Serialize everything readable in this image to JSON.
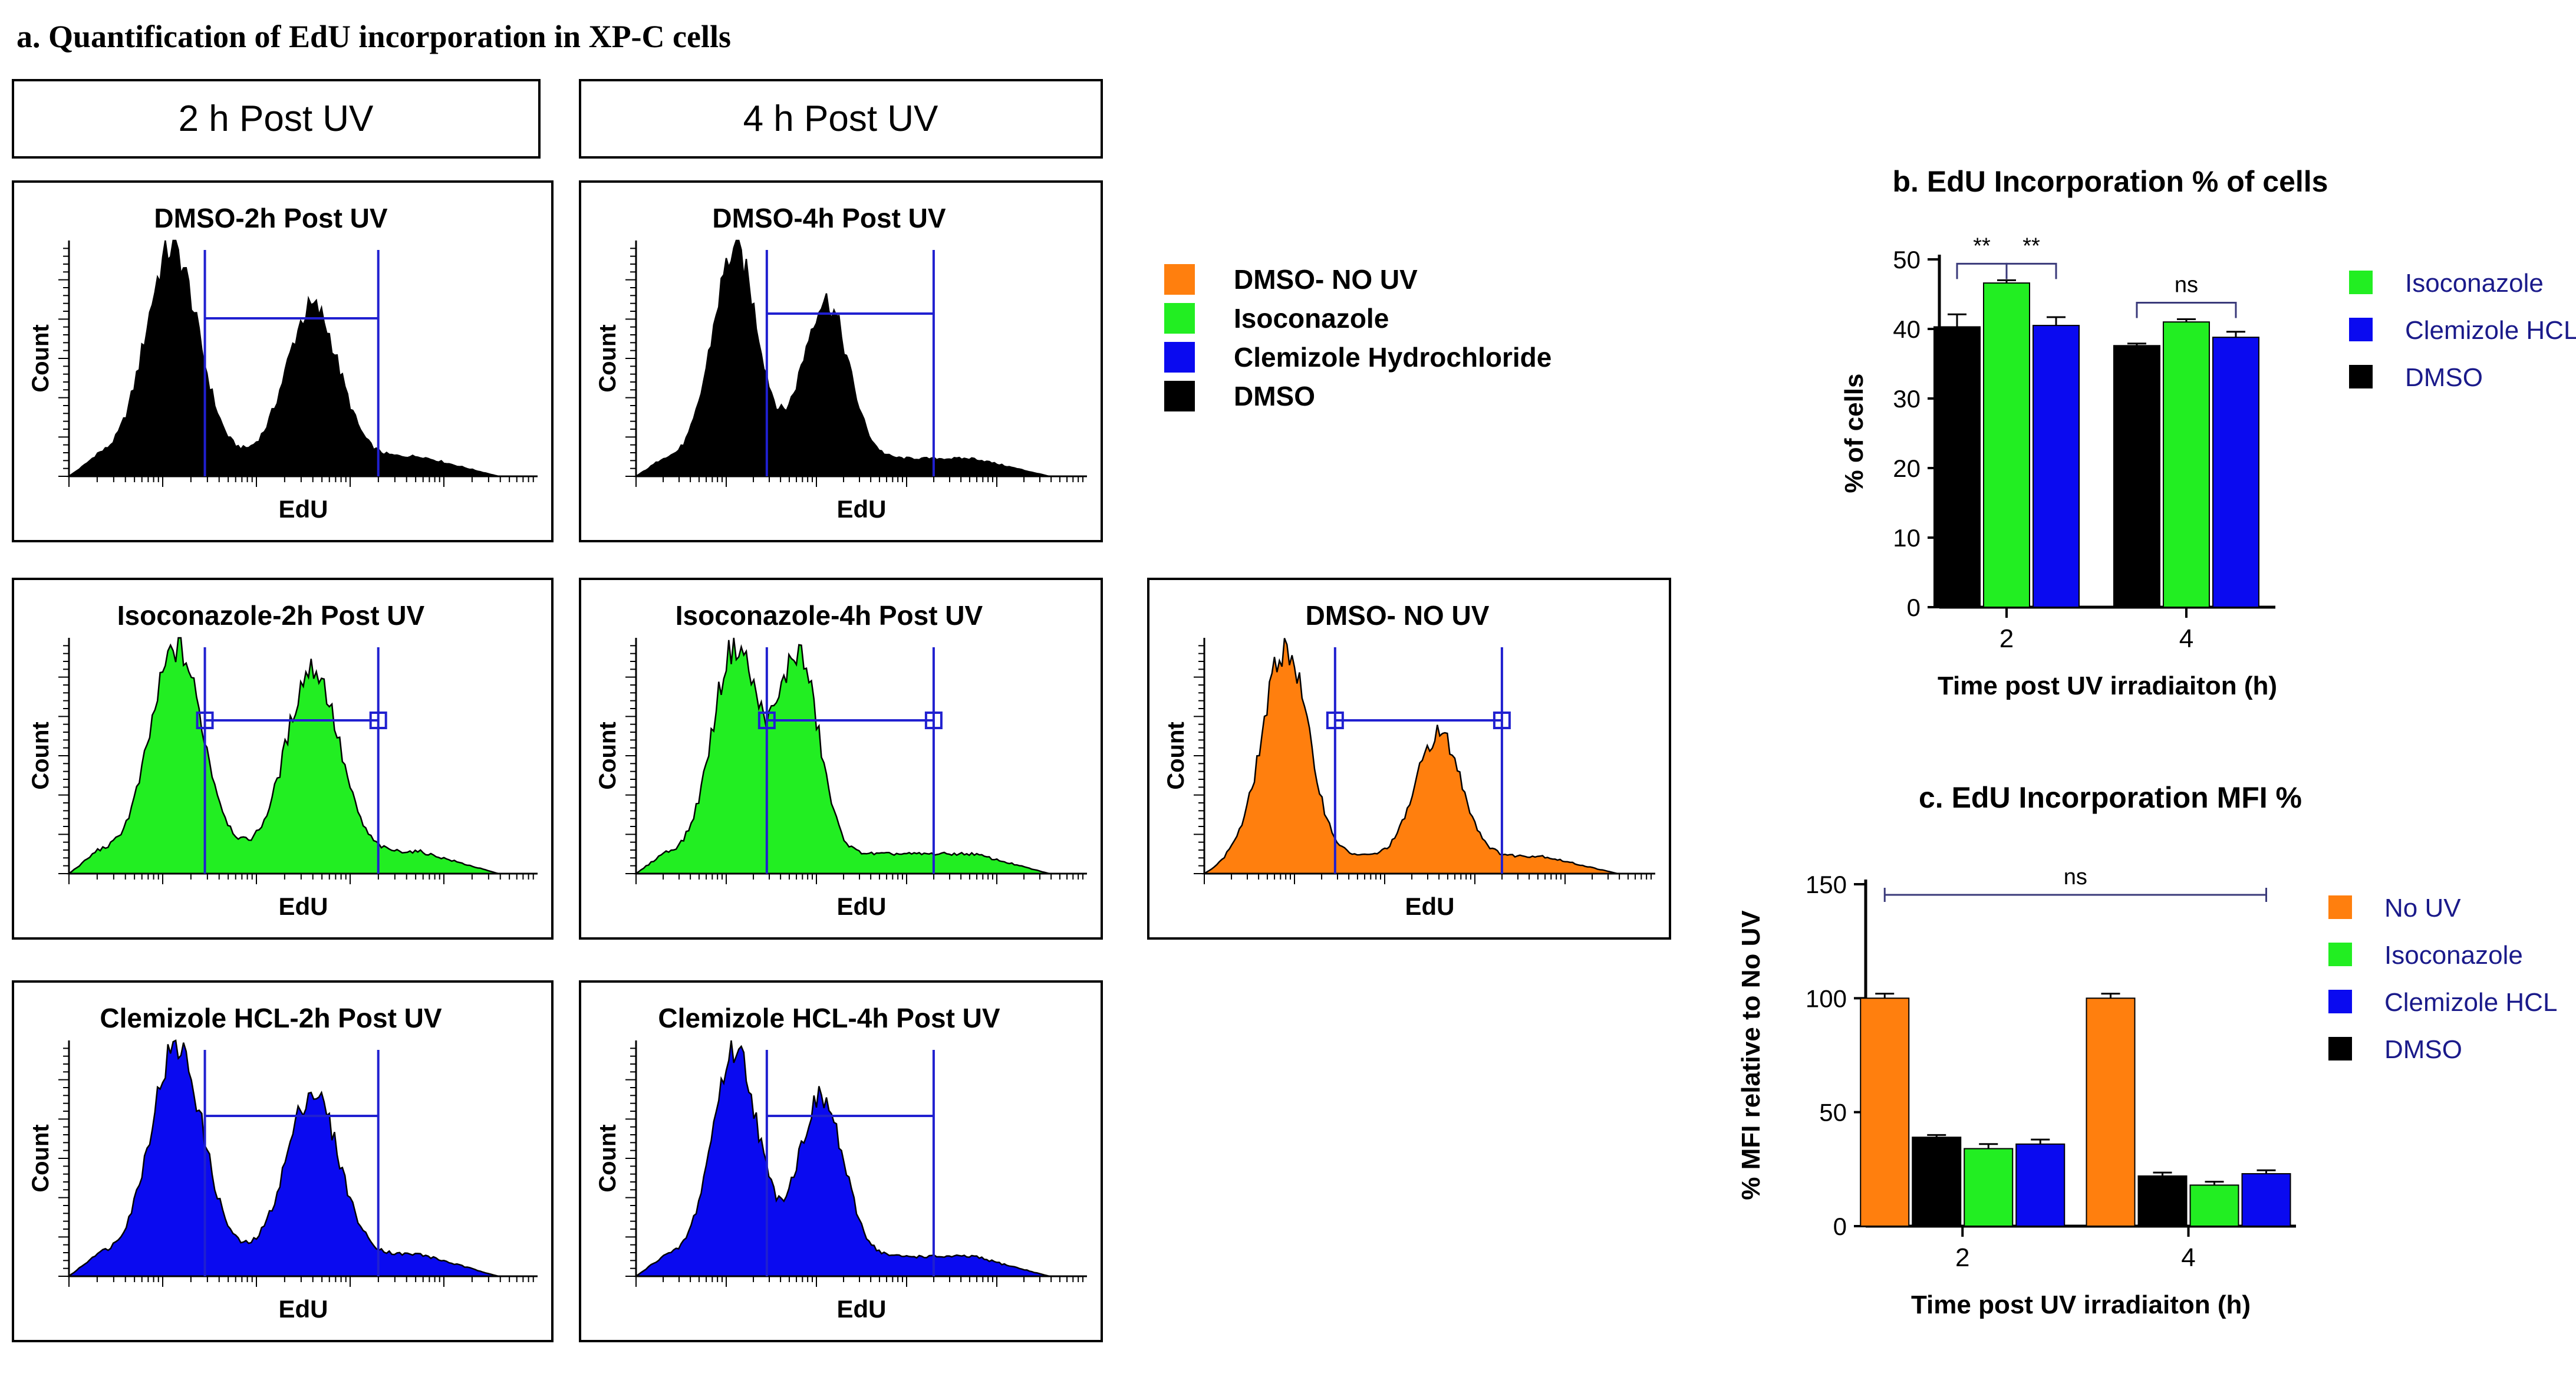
{
  "figure": {
    "panel_a_title": "a. Quantification of EdU incorporation in XP-C cells",
    "col_headers": [
      "2 h Post UV",
      "4 h Post UV"
    ],
    "colors": {
      "dmso": "#000000",
      "isoconazole": "#22ee22",
      "clemizole": "#0a0af0",
      "no_uv": "#ff7f0e",
      "gate": "#2020d0",
      "axis": "#000000"
    }
  },
  "histograms": [
    {
      "title": "DMSO-2h Post UV",
      "xlabel": "EdU",
      "ylabel": "Count",
      "color_key": "dmso",
      "peaks": [
        {
          "center": 0.22,
          "height": 0.95,
          "width": 0.055
        },
        {
          "center": 0.52,
          "height": 0.68,
          "width": 0.055
        }
      ],
      "baseline": 0.09,
      "gate_x": [
        0.29,
        0.66
      ],
      "gate_level": 0.67,
      "gate_markers": false
    },
    {
      "title": "DMSO-4h Post UV",
      "xlabel": "EdU",
      "ylabel": "Count",
      "color_key": "dmso",
      "peaks": [
        {
          "center": 0.22,
          "height": 0.95,
          "width": 0.05
        },
        {
          "center": 0.42,
          "height": 0.72,
          "width": 0.05
        }
      ],
      "baseline": 0.08,
      "gate_x": [
        0.29,
        0.66
      ],
      "gate_level": 0.69,
      "gate_markers": false
    },
    {
      "title": "Isoconazole-2h Post UV",
      "xlabel": "EdU",
      "ylabel": "Count",
      "color_key": "isoconazole",
      "peaks": [
        {
          "center": 0.23,
          "height": 0.93,
          "width": 0.055
        },
        {
          "center": 0.52,
          "height": 0.84,
          "width": 0.055
        }
      ],
      "baseline": 0.1,
      "gate_x": [
        0.29,
        0.66
      ],
      "gate_level": 0.65,
      "gate_markers": true
    },
    {
      "title": "Isoconazole-4h Post UV",
      "xlabel": "EdU",
      "ylabel": "Count",
      "color_key": "isoconazole",
      "peaks": [
        {
          "center": 0.22,
          "height": 0.95,
          "width": 0.05
        },
        {
          "center": 0.36,
          "height": 0.9,
          "width": 0.045
        }
      ],
      "baseline": 0.09,
      "gate_x": [
        0.29,
        0.66
      ],
      "gate_level": 0.65,
      "gate_markers": true
    },
    {
      "title": "DMSO- NO UV",
      "xlabel": "EdU",
      "ylabel": "Count",
      "color_key": "no_uv",
      "peaks": [
        {
          "center": 0.18,
          "height": 0.95,
          "width": 0.05
        },
        {
          "center": 0.52,
          "height": 0.56,
          "width": 0.05
        }
      ],
      "baseline": 0.08,
      "gate_x": [
        0.29,
        0.66
      ],
      "gate_level": 0.65,
      "gate_markers": true
    },
    {
      "title": "Clemizole HCL-2h Post UV",
      "xlabel": "EdU",
      "ylabel": "Count",
      "color_key": "clemizole",
      "peaks": [
        {
          "center": 0.23,
          "height": 0.95,
          "width": 0.055
        },
        {
          "center": 0.52,
          "height": 0.74,
          "width": 0.055
        }
      ],
      "baseline": 0.1,
      "gate_x": [
        0.29,
        0.66
      ],
      "gate_level": 0.68,
      "gate_markers": false
    },
    {
      "title": "Clemizole HCL-4h Post UV",
      "xlabel": "EdU",
      "ylabel": "Count",
      "color_key": "clemizole",
      "peaks": [
        {
          "center": 0.22,
          "height": 0.95,
          "width": 0.05
        },
        {
          "center": 0.41,
          "height": 0.72,
          "width": 0.05
        }
      ],
      "baseline": 0.09,
      "gate_x": [
        0.29,
        0.66
      ],
      "gate_level": 0.68,
      "gate_markers": false
    }
  ],
  "legend_a": [
    {
      "label": "DMSO- NO UV",
      "color_key": "no_uv"
    },
    {
      "label": "Isoconazole",
      "color_key": "isoconazole"
    },
    {
      "label": "Clemizole Hydrochloride",
      "color_key": "clemizole"
    },
    {
      "label": "DMSO",
      "color_key": "dmso"
    }
  ],
  "chart_data": [
    {
      "type": "bar",
      "title": "b. EdU Incorporation % of cells",
      "xlabel": "Time post UV irradiaiton (h)",
      "ylabel": "% of cells",
      "categories": [
        "2",
        "4"
      ],
      "ylim": [
        0,
        50
      ],
      "yticks": [
        0,
        10,
        20,
        30,
        40,
        50
      ],
      "series": [
        {
          "name": "DMSO",
          "color_key": "dmso",
          "values": [
            40.3,
            37.6
          ],
          "errors": [
            1.8,
            0.3
          ]
        },
        {
          "name": "Isoconazole",
          "color_key": "isoconazole",
          "values": [
            46.6,
            41.0
          ],
          "errors": [
            0.4,
            0.4
          ]
        },
        {
          "name": "Clemizole HCL",
          "color_key": "clemizole",
          "values": [
            40.5,
            38.8
          ],
          "errors": [
            1.2,
            0.8
          ]
        }
      ],
      "legend": [
        {
          "label": "Isoconazole",
          "color_key": "isoconazole"
        },
        {
          "label": "Clemizole HCL",
          "color_key": "clemizole"
        },
        {
          "label": "DMSO",
          "color_key": "dmso"
        }
      ],
      "significance": [
        {
          "label": "**",
          "from_series": 0,
          "to_series": 1,
          "category": 0
        },
        {
          "label": "**",
          "from_series": 1,
          "to_series": 2,
          "category": 0
        },
        {
          "label": "ns",
          "from_series": 0,
          "to_series": 2,
          "category": 1
        }
      ]
    },
    {
      "type": "bar",
      "title": "c. EdU Incorporation MFI %",
      "xlabel": "Time post UV irradiaiton (h)",
      "ylabel": "% MFI relative to No UV",
      "categories": [
        "2",
        "4"
      ],
      "ylim": [
        0,
        150
      ],
      "yticks": [
        0,
        50,
        100,
        150
      ],
      "series": [
        {
          "name": "No UV",
          "color_key": "no_uv",
          "values": [
            100,
            100
          ],
          "errors": [
            2,
            2
          ]
        },
        {
          "name": "DMSO",
          "color_key": "dmso",
          "values": [
            39,
            22
          ],
          "errors": [
            1,
            1.5
          ]
        },
        {
          "name": "Isoconazole",
          "color_key": "isoconazole",
          "values": [
            34,
            18
          ],
          "errors": [
            2,
            1.5
          ]
        },
        {
          "name": "Clemizole HCL",
          "color_key": "clemizole",
          "values": [
            36,
            23
          ],
          "errors": [
            2,
            1.5
          ]
        }
      ],
      "legend": [
        {
          "label": "No UV",
          "color_key": "no_uv"
        },
        {
          "label": "Isoconazole",
          "color_key": "isoconazole"
        },
        {
          "label": "Clemizole HCL",
          "color_key": "clemizole"
        },
        {
          "label": "DMSO",
          "color_key": "dmso"
        }
      ],
      "significance": [
        {
          "label": "ns",
          "from_series": 0,
          "to_series": 3,
          "category": "all"
        }
      ]
    }
  ]
}
